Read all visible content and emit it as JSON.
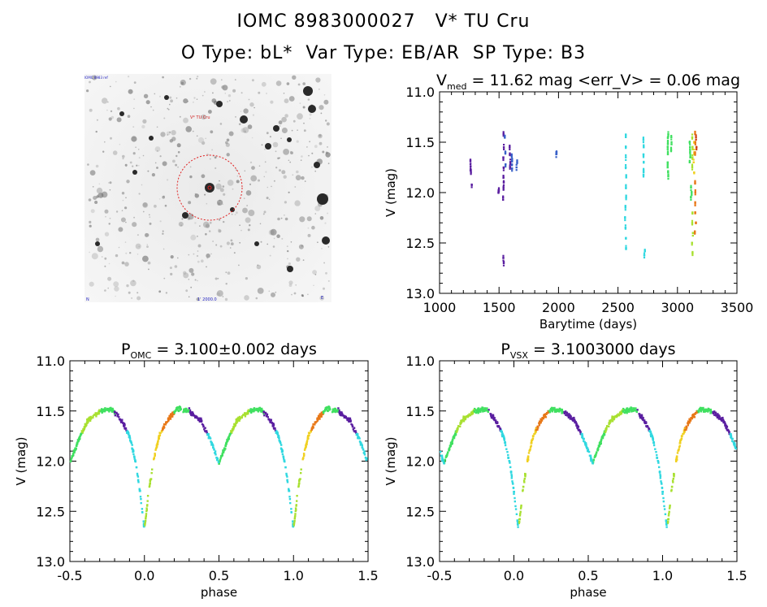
{
  "header": {
    "line1": "IOMC 8983000027   V* TU Cru",
    "line2": "O Type: bL*  Var Type: EB/AR  SP Type: B3"
  },
  "finder": {
    "label_top_left": "IOMC 8983 ref",
    "label_target": "V* TU Cru",
    "label_bottom_left": "N",
    "label_bottom_center": "1' 2000.0",
    "label_bottom_right": "E"
  },
  "colors": {
    "purple": "#5a1ea0",
    "blue": "#3860c8",
    "cyan": "#30d8e0",
    "green": "#40e060",
    "yellow_green": "#a8e030",
    "yellow": "#f0d020",
    "orange": "#e87818",
    "red_orange": "#d04010",
    "finder_circle": "#e02020"
  },
  "chart_data": [
    {
      "id": "lightcurve",
      "type": "scatter",
      "title": "V_med = 11.62 mag <err_V> = 0.06 mag",
      "title_parts": [
        "V",
        "med",
        " = 11.62 mag <err_V> = 0.06 mag"
      ],
      "xlabel": "Barytime (days)",
      "ylabel": "V (mag)",
      "xlim": [
        1000,
        3500
      ],
      "ylim": [
        13.0,
        11.0
      ],
      "xticks": [
        1000,
        1500,
        2000,
        2500,
        3000,
        3500
      ],
      "yticks": [
        11.0,
        11.5,
        12.0,
        12.5,
        13.0
      ],
      "segments": [
        {
          "x": 1262,
          "y": [
            11.69,
            11.74,
            11.78,
            11.8
          ],
          "color": "purple"
        },
        {
          "x": 1268,
          "y": [
            11.92
          ],
          "color": "purple"
        },
        {
          "x": 1500,
          "y": [
            11.97,
            12.0
          ],
          "color": "purple"
        },
        {
          "x": 1538,
          "y": [
            11.42,
            11.55,
            11.65,
            11.75,
            11.85,
            11.9,
            11.95,
            12.05,
            12.65,
            12.7
          ],
          "color": "purple"
        },
        {
          "x": 1552,
          "y": [
            11.45,
            11.6,
            11.72
          ],
          "color": "blue"
        },
        {
          "x": 1590,
          "y": [
            11.55,
            11.62,
            11.7,
            11.75
          ],
          "color": "purple"
        },
        {
          "x": 1610,
          "y": [
            11.63,
            11.68,
            11.72,
            11.76
          ],
          "color": "blue"
        },
        {
          "x": 1650,
          "y": [
            11.7,
            11.75
          ],
          "color": "blue"
        },
        {
          "x": 1985,
          "y": [
            11.6,
            11.62
          ],
          "color": "blue"
        },
        {
          "x": 2565,
          "y": [
            11.45,
            11.55,
            11.65,
            11.75,
            11.85,
            11.95,
            12.05,
            12.15,
            12.25,
            12.35,
            12.45,
            12.55
          ],
          "color": "cyan"
        },
        {
          "x": 2715,
          "y": [
            11.48,
            11.55,
            11.62,
            11.7,
            11.78,
            11.82
          ],
          "color": "cyan"
        },
        {
          "x": 2725,
          "y": [
            12.58,
            12.62
          ],
          "color": "cyan"
        },
        {
          "x": 2920,
          "y": [
            11.42,
            11.46,
            11.52,
            11.57,
            11.62,
            11.7,
            11.75,
            11.8,
            11.84
          ],
          "color": "green"
        },
        {
          "x": 2950,
          "y": [
            11.45,
            11.52,
            11.58
          ],
          "color": "green"
        },
        {
          "x": 3105,
          "y": [
            11.5,
            11.55,
            11.6,
            11.65,
            11.7
          ],
          "color": "green"
        },
        {
          "x": 3115,
          "y": [
            11.95,
            12.0,
            12.05
          ],
          "color": "green"
        },
        {
          "x": 3125,
          "y": [
            11.45,
            11.55,
            11.65,
            11.75,
            12.2,
            12.3,
            12.4,
            12.5,
            12.6
          ],
          "color": "yellow_green"
        },
        {
          "x": 3140,
          "y": [
            11.5,
            11.6,
            11.7,
            11.8
          ],
          "color": "yellow"
        },
        {
          "x": 3150,
          "y": [
            11.42,
            11.5,
            11.6,
            11.9,
            12.0,
            12.1,
            12.2,
            12.3,
            12.4
          ],
          "color": "orange"
        },
        {
          "x": 3158,
          "y": [
            11.45,
            11.55
          ],
          "color": "red_orange"
        }
      ]
    },
    {
      "id": "phase_omc",
      "type": "scatter",
      "title": "P_OMC = 3.100±0.002 days",
      "title_parts": [
        "P",
        "OMC",
        " = 3.100±0.002 days"
      ],
      "xlabel": "phase",
      "ylabel": "V (mag)",
      "xlim": [
        -0.5,
        1.5
      ],
      "ylim": [
        13.0,
        11.0
      ],
      "xticks": [
        -0.5,
        0.0,
        0.5,
        1.0,
        1.5
      ],
      "yticks": [
        11.0,
        11.5,
        12.0,
        12.5,
        13.0
      ],
      "phase_shift": 0.0
    },
    {
      "id": "phase_vsx",
      "type": "scatter",
      "title": "P_VSX = 3.1003000 days",
      "title_parts": [
        "P",
        "VSX",
        " = 3.1003000 days"
      ],
      "xlabel": "phase",
      "ylabel": "V (mag)",
      "xlim": [
        -0.5,
        1.5
      ],
      "ylim": [
        13.0,
        11.0
      ],
      "xticks": [
        -0.5,
        0.0,
        0.5,
        1.0,
        1.5
      ],
      "yticks": [
        11.0,
        11.5,
        12.0,
        12.5,
        13.0
      ],
      "phase_shift": 0.03
    }
  ],
  "phase_curve": {
    "knots": [
      {
        "phase": 0.0,
        "mag": 12.68
      },
      {
        "phase": 0.03,
        "mag": 12.3
      },
      {
        "phase": 0.06,
        "mag": 12.0
      },
      {
        "phase": 0.1,
        "mag": 11.75
      },
      {
        "phase": 0.15,
        "mag": 11.6
      },
      {
        "phase": 0.22,
        "mag": 11.48
      },
      {
        "phase": 0.3,
        "mag": 11.5
      },
      {
        "phase": 0.38,
        "mag": 11.6
      },
      {
        "phase": 0.44,
        "mag": 11.78
      },
      {
        "phase": 0.5,
        "mag": 12.02
      },
      {
        "phase": 0.56,
        "mag": 11.78
      },
      {
        "phase": 0.62,
        "mag": 11.6
      },
      {
        "phase": 0.7,
        "mag": 11.5
      },
      {
        "phase": 0.78,
        "mag": 11.48
      },
      {
        "phase": 0.85,
        "mag": 11.6
      },
      {
        "phase": 0.9,
        "mag": 11.75
      },
      {
        "phase": 0.94,
        "mag": 12.0
      },
      {
        "phase": 0.97,
        "mag": 12.3
      },
      {
        "phase": 1.0,
        "mag": 12.68
      }
    ],
    "color_bands": [
      {
        "from": 0.0,
        "to": 0.06,
        "color": "yellow_green"
      },
      {
        "from": 0.06,
        "to": 0.12,
        "color": "yellow"
      },
      {
        "from": 0.12,
        "to": 0.2,
        "color": "orange"
      },
      {
        "from": 0.2,
        "to": 0.3,
        "color": "green"
      },
      {
        "from": 0.3,
        "to": 0.42,
        "color": "purple"
      },
      {
        "from": 0.42,
        "to": 0.5,
        "color": "cyan"
      },
      {
        "from": 0.5,
        "to": 0.58,
        "color": "green"
      },
      {
        "from": 0.58,
        "to": 0.7,
        "color": "yellow_green"
      },
      {
        "from": 0.7,
        "to": 0.8,
        "color": "green"
      },
      {
        "from": 0.8,
        "to": 0.88,
        "color": "purple"
      },
      {
        "from": 0.88,
        "to": 1.0,
        "color": "cyan"
      }
    ]
  }
}
